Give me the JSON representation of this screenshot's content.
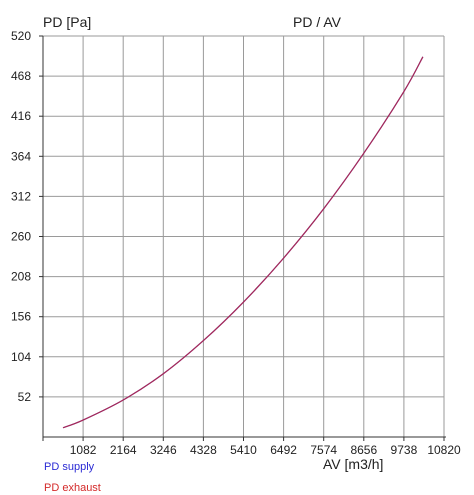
{
  "chart_data": {
    "type": "line",
    "title": "PD / AV",
    "xlabel": "AV [m3/h]",
    "ylabel": "PD [Pa]",
    "xlim": [
      0,
      10820
    ],
    "ylim": [
      0,
      520
    ],
    "x_ticks": [
      "1082",
      "2164",
      "3246",
      "4328",
      "5410",
      "6492",
      "7574",
      "8656",
      "9738",
      "10820"
    ],
    "y_ticks": [
      "52",
      "104",
      "156",
      "208",
      "260",
      "312",
      "364",
      "416",
      "468",
      "520"
    ],
    "grid": true,
    "legend_position": "bottom-left",
    "series": [
      {
        "name": "PD supply",
        "color": "#2a2ad4",
        "x": [
          540,
          1082,
          2164,
          3246,
          4328,
          5410,
          6492,
          7574,
          8656,
          9738,
          10250
        ],
        "y": [
          12,
          22,
          48,
          82,
          125,
          175,
          232,
          296,
          368,
          448,
          493
        ]
      },
      {
        "name": "PD exhaust",
        "color": "#d42a2a",
        "x": [
          540,
          1082,
          2164,
          3246,
          4328,
          5410,
          6492,
          7574,
          8656,
          9738,
          10250
        ],
        "y": [
          12,
          22,
          48,
          82,
          125,
          175,
          232,
          296,
          368,
          448,
          493
        ]
      }
    ]
  }
}
